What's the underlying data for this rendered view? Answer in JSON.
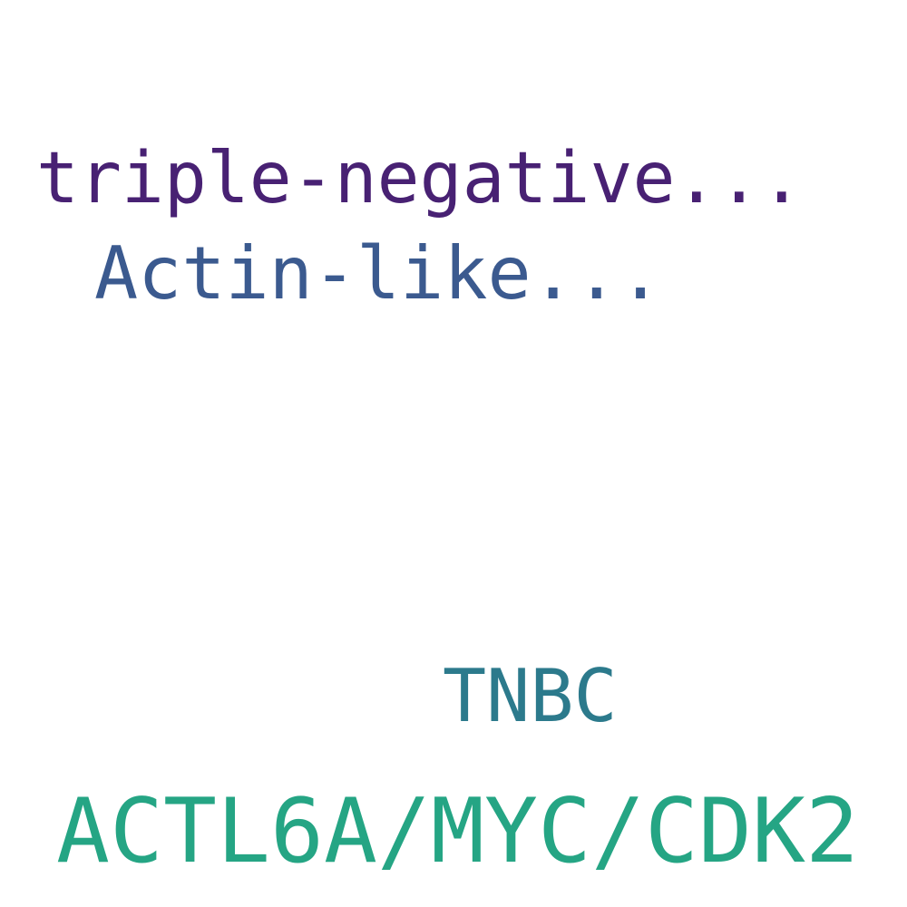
{
  "words": [
    {
      "text": "triple-negative...",
      "color": "#482173"
    },
    {
      "text": "Actin-like...",
      "color": "#3b5a8f"
    },
    {
      "text": "TNBC",
      "color": "#2c7a8c"
    },
    {
      "text": "ACTL6A/MYC/CDK2",
      "color": "#25a584"
    }
  ]
}
